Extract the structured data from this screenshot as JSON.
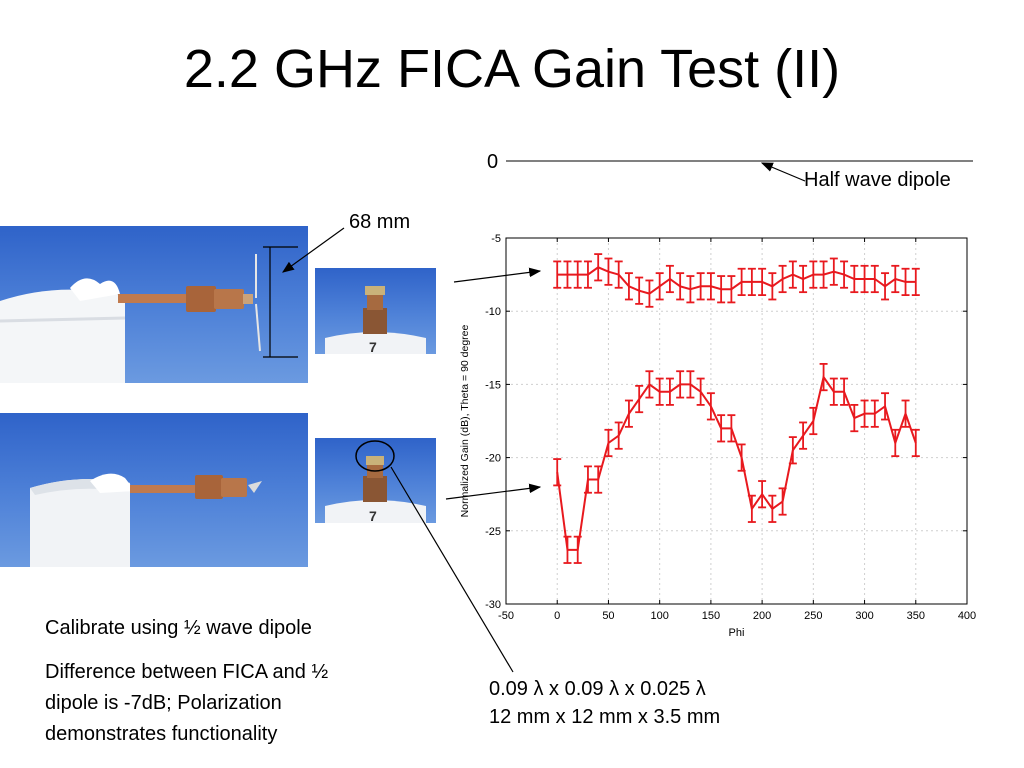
{
  "slide": {
    "title": "2.2 GHz FICA Gain Test (II)",
    "zero_label": "0",
    "dipole_label": "Half wave dipole",
    "dimension_label": "68 mm",
    "calibrate_text": "Calibrate using ½ wave dipole",
    "difference_text_1": "Difference between FICA and ½",
    "difference_text_2": "dipole is -7dB; Polarization",
    "difference_text_3": "demonstrates functionality",
    "size_text_1": "0.09 λ x 0.09 λ x 0.025 λ",
    "size_text_2": "12 mm x 12 mm x 3.5 mm"
  },
  "photos": {
    "plate_numeral": "7"
  },
  "colors": {
    "series": "#e8191e",
    "sky": "#3f75d4",
    "copper": "#b06a3e"
  },
  "chart_data": {
    "type": "line",
    "xlabel": "Phi",
    "ylabel": "Normalized Gain (dB), Theta = 90 degree",
    "xlim": [
      -50,
      400
    ],
    "ylim": [
      -30,
      -5
    ],
    "xticks": [
      -50,
      0,
      50,
      100,
      150,
      200,
      250,
      300,
      350,
      400
    ],
    "yticks": [
      -5,
      -10,
      -15,
      -20,
      -25,
      -30
    ],
    "grid": true,
    "error_bars": true,
    "error_half_width": 0.9,
    "series": [
      {
        "x": [
          0,
          10,
          20,
          30,
          40,
          50,
          60,
          70,
          80,
          90,
          100,
          110,
          120,
          130,
          140,
          150,
          160,
          170,
          180,
          190,
          200,
          210,
          220,
          230,
          240,
          250,
          260,
          270,
          280,
          290,
          300,
          310,
          320,
          330,
          340,
          350
        ],
        "values": [
          -7.5,
          -7.5,
          -7.5,
          -7.5,
          -7,
          -7.3,
          -7.5,
          -8.3,
          -8.6,
          -8.8,
          -8.3,
          -7.8,
          -8.3,
          -8.5,
          -8.3,
          -8.3,
          -8.5,
          -8.5,
          -8,
          -8,
          -8,
          -8.3,
          -7.8,
          -7.5,
          -7.8,
          -7.5,
          -7.5,
          -7.3,
          -7.5,
          -7.8,
          -7.8,
          -7.8,
          -8.3,
          -7.8,
          -8,
          -8
        ]
      },
      {
        "x": [
          0,
          10,
          20,
          30,
          40,
          50,
          60,
          70,
          80,
          90,
          100,
          110,
          120,
          130,
          140,
          150,
          160,
          170,
          180,
          190,
          200,
          210,
          220,
          230,
          240,
          250,
          260,
          270,
          280,
          290,
          300,
          310,
          320,
          330,
          340,
          350
        ],
        "values": [
          -21,
          -26.3,
          -26.3,
          -21.5,
          -21.5,
          -19,
          -18.5,
          -17,
          -16,
          -15,
          -15.5,
          -15.5,
          -15,
          -15,
          -15.5,
          -16.5,
          -18,
          -18,
          -20,
          -23.5,
          -22.5,
          -23.5,
          -23,
          -19.5,
          -18.5,
          -17.5,
          -14.5,
          -15.5,
          -15.5,
          -17.3,
          -17,
          -17,
          -16.5,
          -19,
          -17,
          -19
        ]
      }
    ]
  }
}
